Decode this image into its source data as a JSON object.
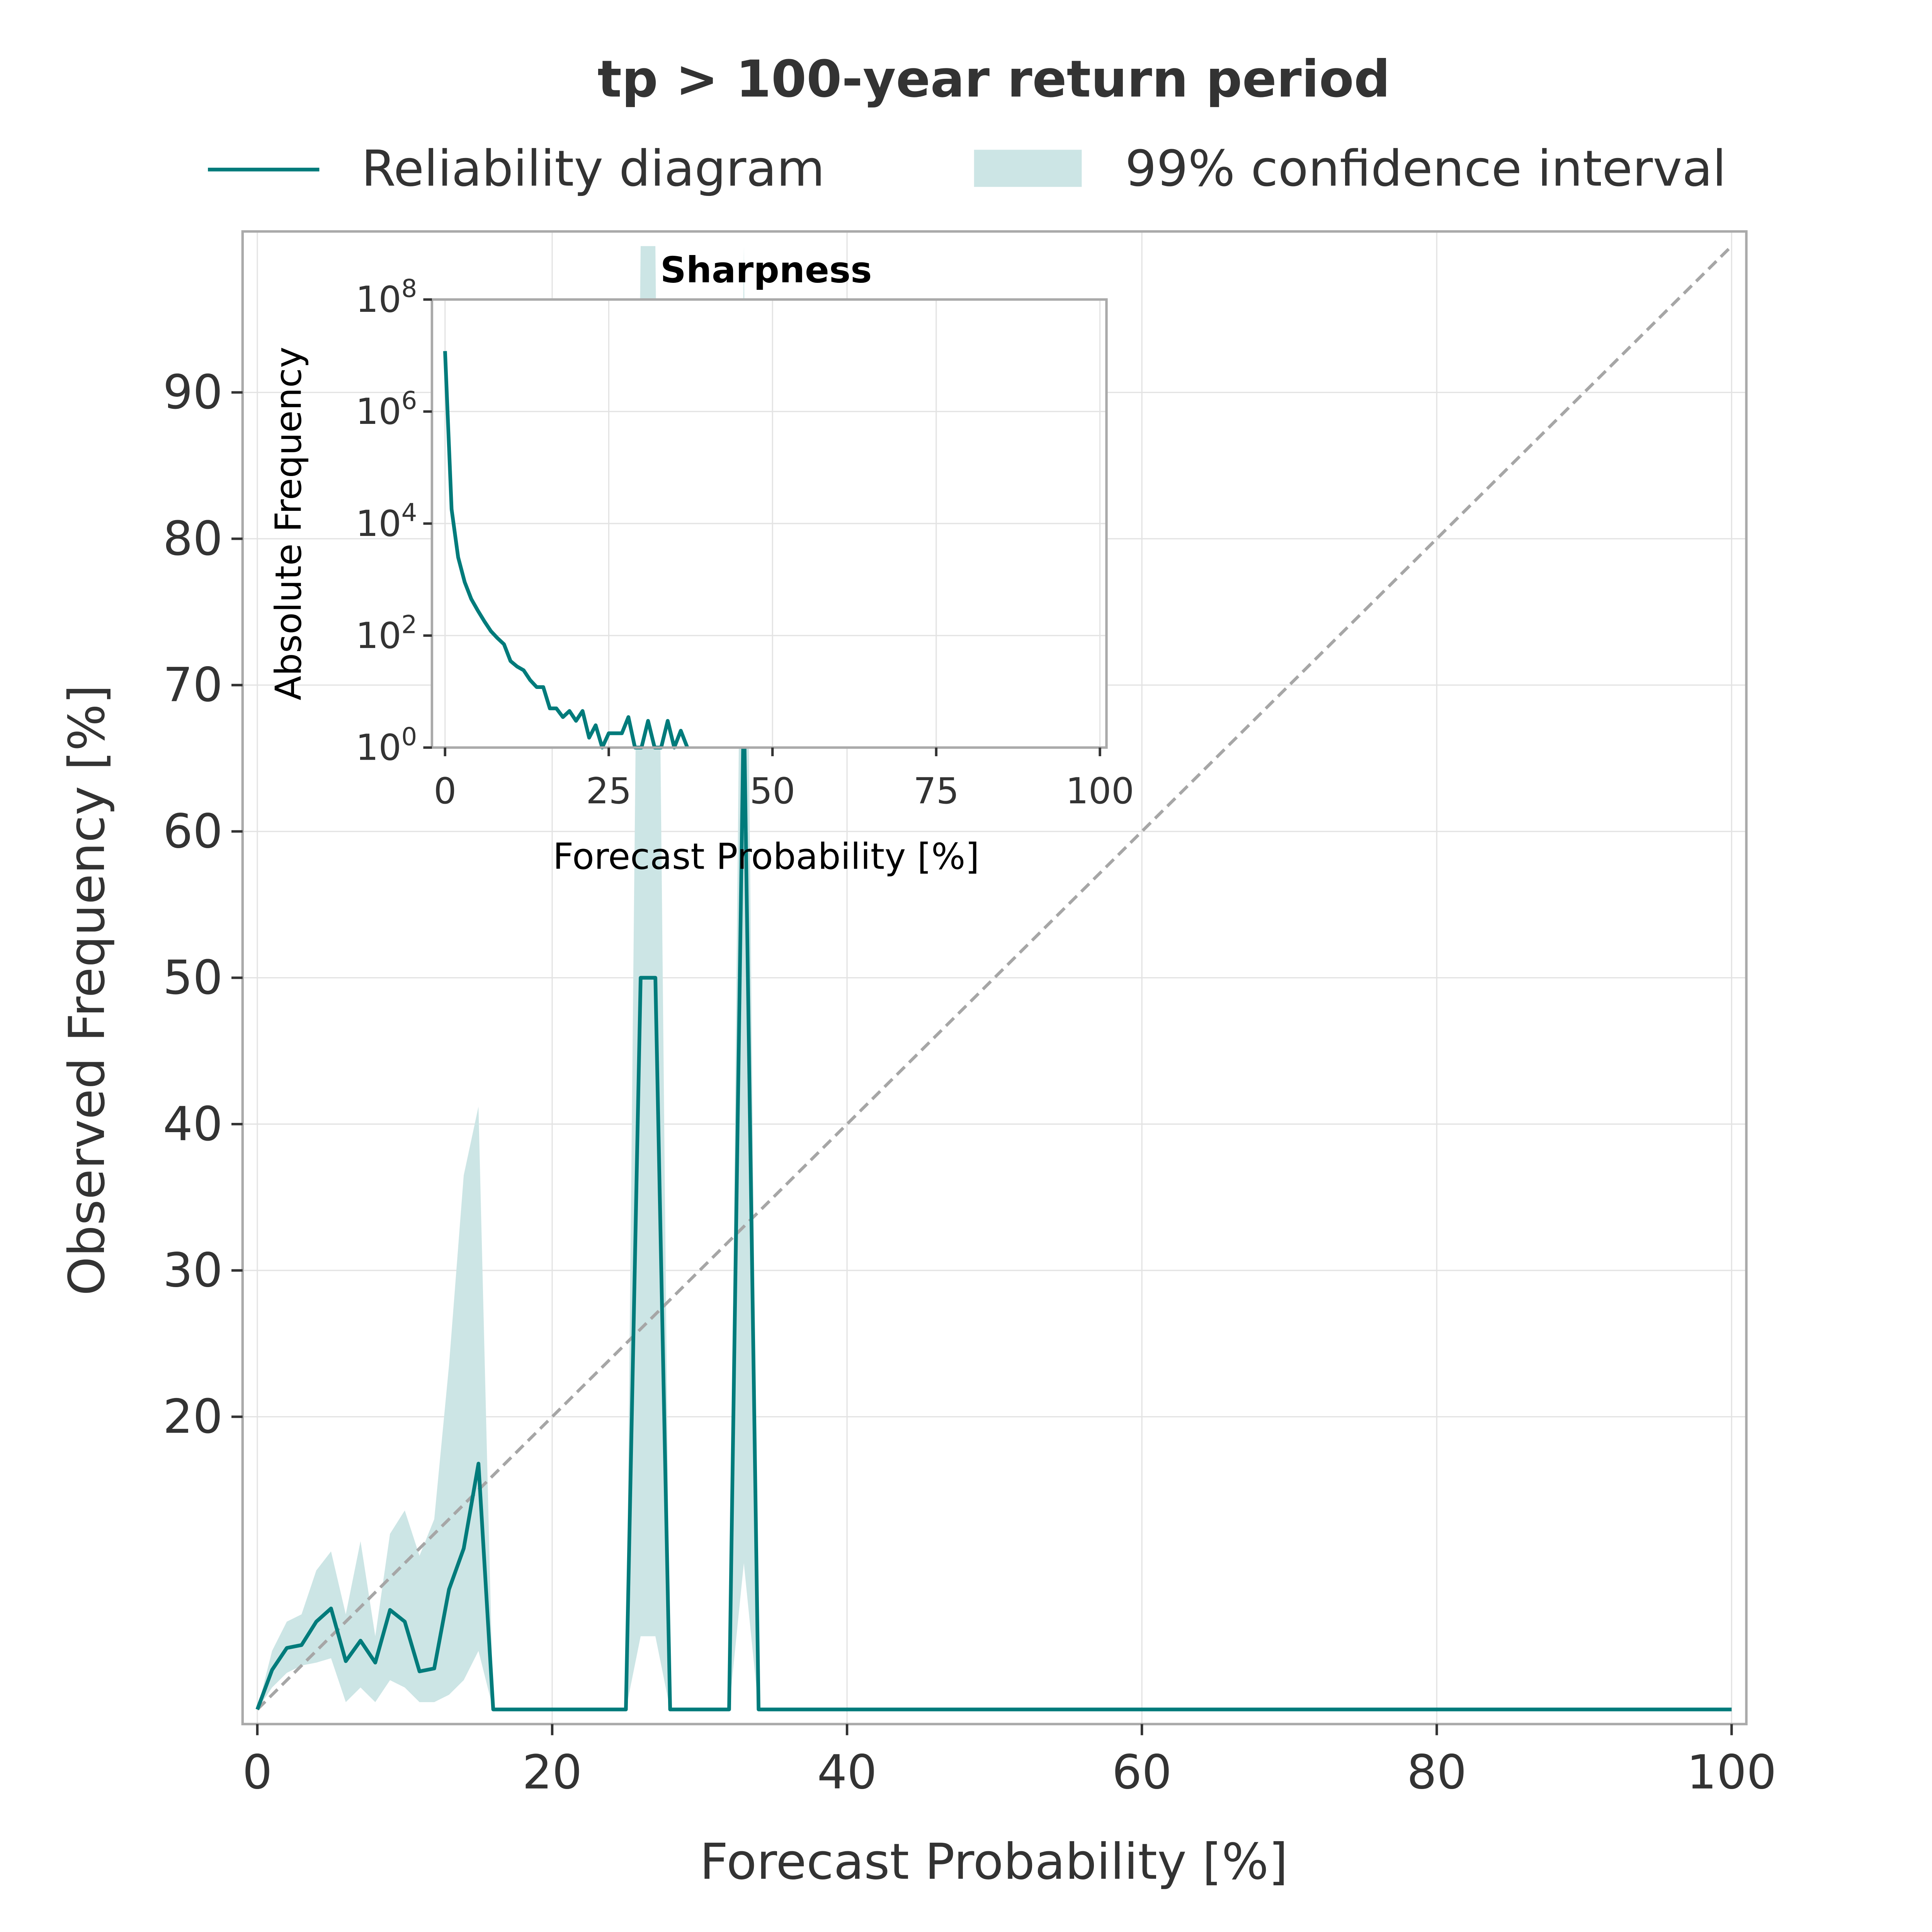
{
  "figure": {
    "title": "tp > 100-year return period",
    "legend": [
      {
        "label": "Reliability diagram",
        "kind": "line",
        "color": "#007b7b"
      },
      {
        "label": "99% confidence interval",
        "kind": "patch",
        "color": "#cce5e5"
      }
    ]
  },
  "chart_data": [
    {
      "type": "line",
      "title": "tp > 100-year return period",
      "xlabel": "Forecast Probability [%]",
      "ylabel": "Observed Frequency [%]",
      "xlim": [
        -1,
        101
      ],
      "ylim": [
        -1,
        101
      ],
      "xticks": [
        0,
        20,
        40,
        60,
        80,
        100
      ],
      "yticks": [
        20,
        30,
        40,
        50,
        60,
        70,
        80,
        90
      ],
      "grid": true,
      "legend_position": "top, outside",
      "diagonal": {
        "from": [
          0,
          0
        ],
        "to": [
          100,
          100
        ],
        "style": "dashed",
        "color": "#a6a6a6"
      },
      "series": [
        {
          "name": "Reliability diagram",
          "color": "#007b7b",
          "x": [
            0,
            1,
            2,
            3,
            4,
            5,
            6,
            7,
            8,
            9,
            10,
            11,
            12,
            13,
            14,
            15,
            16,
            25,
            26,
            27,
            28,
            32,
            33,
            34,
            35,
            100
          ],
          "y": [
            0,
            2.7,
            4.2,
            4.4,
            6.0,
            6.9,
            3.3,
            4.7,
            3.2,
            6.8,
            6.0,
            2.6,
            2.8,
            8.2,
            11.0,
            16.8,
            0,
            0,
            50,
            50,
            0,
            0,
            69,
            0,
            0,
            0
          ]
        },
        {
          "name": "99% confidence interval",
          "color": "#cce5e5",
          "x": [
            0,
            1,
            2,
            3,
            4,
            5,
            6,
            7,
            8,
            9,
            10,
            11,
            12,
            13,
            14,
            15,
            16,
            25,
            26,
            27,
            28,
            32,
            33,
            34,
            35,
            100
          ],
          "lower": [
            0,
            1.5,
            2.5,
            3.0,
            3.2,
            3.5,
            0.5,
            1.5,
            0.5,
            2.0,
            1.5,
            0.5,
            0.5,
            1.0,
            2.0,
            4.0,
            0,
            0,
            5,
            5,
            0,
            0,
            10,
            0,
            0,
            0
          ],
          "upper": [
            0,
            4.0,
            6.0,
            6.5,
            9.5,
            10.8,
            6.5,
            11.5,
            5.0,
            12.0,
            13.6,
            10.5,
            13.0,
            23.5,
            36.5,
            41.2,
            0,
            0,
            100,
            100,
            0,
            0,
            100,
            0,
            0,
            0
          ]
        }
      ]
    },
    {
      "type": "line",
      "title": "Sharpness",
      "xlabel": "Forecast Probability [%]",
      "ylabel": "Absolute Frequency",
      "xlim": [
        -2,
        101
      ],
      "ylim": [
        1,
        100000000
      ],
      "yscale": "log",
      "xticks": [
        0,
        25,
        50,
        75,
        100
      ],
      "yticks": [
        {
          "base": "10",
          "exp": "0",
          "value": 1
        },
        {
          "base": "10",
          "exp": "2",
          "value": 100
        },
        {
          "base": "10",
          "exp": "4",
          "value": 10000
        },
        {
          "base": "10",
          "exp": "6",
          "value": 1000000
        },
        {
          "base": "10",
          "exp": "8",
          "value": 100000000
        }
      ],
      "grid": true,
      "series": [
        {
          "color": "#007b7b",
          "x": [
            0,
            1,
            2,
            3,
            4,
            5,
            6,
            7,
            8,
            9,
            10,
            11,
            12,
            13,
            14,
            15,
            16,
            17,
            18,
            19,
            20,
            21,
            22,
            23,
            24,
            25,
            26,
            27,
            28,
            29,
            30,
            31,
            32,
            33,
            34,
            35,
            36,
            37
          ],
          "y": [
            12000000,
            18000,
            2500,
            900,
            450,
            280,
            180,
            120,
            90,
            70,
            35,
            28,
            24,
            16,
            12,
            12,
            5,
            5,
            3.5,
            4.5,
            3,
            4.5,
            1.5,
            2.5,
            1,
            1.8,
            1.8,
            1.8,
            3.5,
            1,
            1,
            3,
            1,
            1,
            3,
            1,
            2,
            1
          ]
        }
      ]
    }
  ]
}
